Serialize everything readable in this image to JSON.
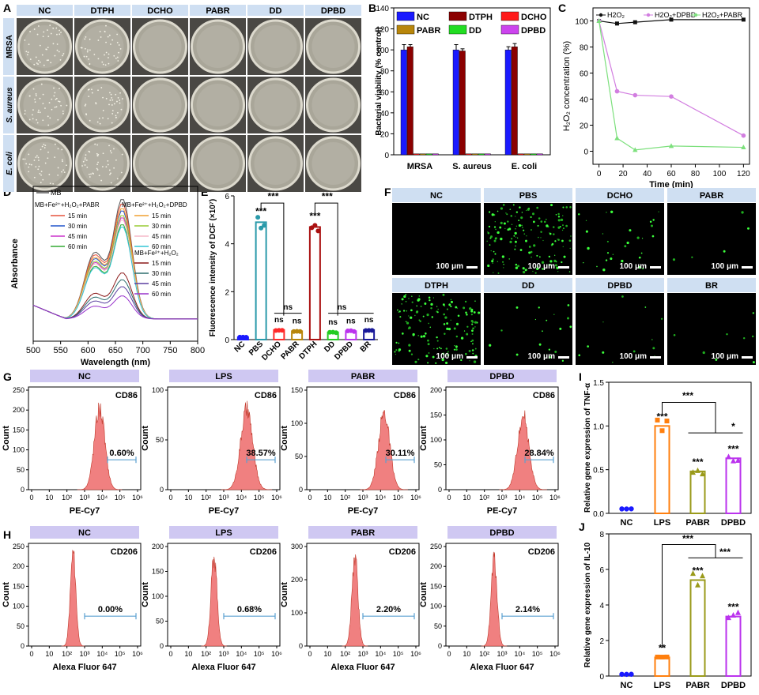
{
  "panels": {
    "A": {
      "label": "A",
      "columns": [
        "NC",
        "DTPH",
        "DCHO",
        "PABR",
        "DD",
        "DPBD"
      ],
      "rows": [
        "MRSA",
        "S. aureus",
        "E. coli"
      ],
      "colonies": [
        [
          1,
          1,
          0,
          0,
          0,
          0
        ],
        [
          1,
          1,
          0,
          0,
          0,
          0
        ],
        [
          1,
          1,
          0,
          0,
          0,
          0
        ]
      ]
    },
    "B": {
      "label": "B",
      "chart_data": {
        "type": "bar",
        "ylabel": "Bacterial viability (% control)",
        "categories": [
          "MRSA",
          "S. aureus",
          "E. coli"
        ],
        "ylim": [
          0,
          140
        ],
        "yticks": [
          0,
          20,
          40,
          60,
          80,
          100,
          120,
          140
        ],
        "series": [
          {
            "name": "NC",
            "color": "#1a1aff",
            "values": [
              100,
              100,
              100
            ],
            "err": [
              5,
              5,
              3
            ]
          },
          {
            "name": "DTPH",
            "color": "#8b0000",
            "values": [
              103,
              99,
              103
            ],
            "err": [
              2,
              2,
              3
            ]
          },
          {
            "name": "DCHO",
            "color": "#ff1a1a",
            "values": [
              1,
              1,
              1
            ],
            "err": [
              0,
              0,
              0
            ]
          },
          {
            "name": "PABR",
            "color": "#b8860b",
            "values": [
              1,
              1,
              1
            ],
            "err": [
              0,
              0,
              0
            ]
          },
          {
            "name": "DD",
            "color": "#22dd22",
            "values": [
              1,
              1,
              1
            ],
            "err": [
              0,
              0,
              0
            ]
          },
          {
            "name": "DPBD",
            "color": "#cc44ee",
            "values": [
              1,
              1,
              1
            ],
            "err": [
              0,
              0,
              0
            ]
          }
        ]
      }
    },
    "C": {
      "label": "C",
      "chart_data": {
        "type": "line",
        "xlabel": "Time (min)",
        "ylabel": "H2O2 concentration (%)",
        "xlim": [
          -5,
          125
        ],
        "ylim": [
          -10,
          110
        ],
        "xticks": [
          0,
          20,
          40,
          60,
          80,
          100,
          120
        ],
        "yticks": [
          0,
          20,
          40,
          60,
          80,
          100
        ],
        "series": [
          {
            "name": "H2O2",
            "color": "#111111",
            "marker": "square",
            "x": [
              0,
              15,
              30,
              60,
              120
            ],
            "y": [
              100,
              98,
              99,
              101,
              101
            ]
          },
          {
            "name": "H2O2+DPBD",
            "color": "#d27ee0",
            "marker": "circle",
            "x": [
              0,
              15,
              30,
              60,
              120
            ],
            "y": [
              100,
              46,
              43,
              42,
              12
            ]
          },
          {
            "name": "H2O2+PABR",
            "color": "#7de07d",
            "marker": "triangle",
            "x": [
              0,
              15,
              30,
              60,
              120
            ],
            "y": [
              100,
              10,
              1,
              4,
              3
            ]
          }
        ]
      }
    },
    "D": {
      "label": "D",
      "chart_data": {
        "type": "line",
        "xlabel": "Wavelength (nm)",
        "ylabel": "Absorbance",
        "xlim": [
          500,
          800
        ],
        "xticks": [
          500,
          550,
          600,
          650,
          700,
          750,
          800
        ],
        "peak_nm": 663,
        "shoulder_nm": 612,
        "legend_groups": [
          {
            "title": "MB",
            "items": [
              {
                "name": "MB",
                "color": "#555555",
                "peak": 0.52
              }
            ]
          },
          {
            "title": "MB+Fe2++H2O2+PABR",
            "items": [
              {
                "name": "15 min",
                "color": "#e5533d",
                "peak": 0.5
              },
              {
                "name": "30 min",
                "color": "#2255cc",
                "peak": 0.47
              },
              {
                "name": "45 min",
                "color": "#cc33cc",
                "peak": 0.44
              },
              {
                "name": "60 min",
                "color": "#33aa33",
                "peak": 0.41
              }
            ]
          },
          {
            "title": "MB+Fe2++H2O2+DPBD",
            "items": [
              {
                "name": "15 min",
                "color": "#f0a030",
                "peak": 0.48
              },
              {
                "name": "30 min",
                "color": "#99cc33",
                "peak": 0.45
              },
              {
                "name": "45 min",
                "color": "#f5b8c8",
                "peak": 0.43
              },
              {
                "name": "60 min",
                "color": "#33c6d6",
                "peak": 0.4
              }
            ]
          },
          {
            "title": "MB+Fe2++H2O2",
            "items": [
              {
                "name": "15 min",
                "color": "#8b1a1a",
                "peak": 0.2
              },
              {
                "name": "30 min",
                "color": "#2f6f6f",
                "peak": 0.17
              },
              {
                "name": "45 min",
                "color": "#5b3fa0",
                "peak": 0.14
              },
              {
                "name": "60 min",
                "color": "#9933cc",
                "peak": 0.1
              }
            ]
          }
        ]
      }
    },
    "E": {
      "label": "E",
      "chart_data": {
        "type": "bar",
        "ylabel": "Fluorescence intensity of DCF (×10^7)",
        "categories": [
          "NC",
          "PBS",
          "DCHO",
          "PABR",
          "DTPH",
          "DD",
          "DPBD",
          "BR"
        ],
        "ylim": [
          0,
          6
        ],
        "yticks": [
          0,
          2,
          4,
          6
        ],
        "values": [
          0.1,
          4.9,
          0.4,
          0.35,
          4.7,
          0.3,
          0.35,
          0.4
        ],
        "colors": [
          "#1a1aff",
          "#2a9aaa",
          "#ff2a2a",
          "#b8860b",
          "#aa1111",
          "#22cc22",
          "#bb33ee",
          "#1a1a99"
        ],
        "significance": [
          "",
          "***",
          "ns",
          "ns",
          "***",
          "ns",
          "ns",
          "ns"
        ],
        "brackets": [
          "***",
          "ns",
          "***",
          "ns"
        ]
      }
    },
    "F": {
      "label": "F",
      "scale_bar": "100 μm",
      "tiles": [
        {
          "name": "NC",
          "density": 0
        },
        {
          "name": "PBS",
          "density": 160
        },
        {
          "name": "DCHO",
          "density": 30
        },
        {
          "name": "PABR",
          "density": 5
        },
        {
          "name": "DTPH",
          "density": 150
        },
        {
          "name": "DD",
          "density": 18
        },
        {
          "name": "DPBD",
          "density": 12
        },
        {
          "name": "BR",
          "density": 8
        }
      ]
    },
    "G": {
      "label": "G",
      "marker": "CD86",
      "xlabel": "PE-Cy7",
      "ylabel": "Count",
      "xtick_labels": [
        "0",
        "10",
        "10²",
        "10³",
        "10⁴",
        "10⁵",
        "10⁶"
      ],
      "chart_data": [
        {
          "title": "NC",
          "percent": "0.60%",
          "ymax": 250,
          "yticks": [
            0,
            50,
            100,
            150,
            200,
            250
          ],
          "peak_log": 3.85,
          "peak_count": 205,
          "width": 0.42
        },
        {
          "title": "LPS",
          "percent": "38.57%",
          "ymax": 100,
          "yticks": [
            0,
            50,
            100
          ],
          "peak_log": 4.3,
          "peak_count": 80,
          "width": 0.48
        },
        {
          "title": "PABR",
          "percent": "30.11%",
          "ymax": 150,
          "yticks": [
            0,
            50,
            100,
            150
          ],
          "peak_log": 4.2,
          "peak_count": 115,
          "width": 0.45
        },
        {
          "title": "DPBD",
          "percent": "28.84%",
          "ymax": 200,
          "yticks": [
            0,
            50,
            100,
            150,
            200
          ],
          "peak_log": 4.2,
          "peak_count": 150,
          "width": 0.45
        }
      ]
    },
    "H": {
      "label": "H",
      "marker": "CD206",
      "xlabel": "Alexa Fluor 647",
      "ylabel": "Count",
      "xtick_labels": [
        "0",
        "10",
        "10²",
        "10³",
        "10⁴",
        "10⁵",
        "10⁶"
      ],
      "chart_data": [
        {
          "title": "NC",
          "percent": "0.00%",
          "ymax": 250,
          "yticks": [
            0,
            50,
            100,
            150,
            200,
            250
          ],
          "peak_log": 2.35,
          "peak_count": 235,
          "width": 0.22
        },
        {
          "title": "LPS",
          "percent": "0.68%",
          "ymax": 200,
          "yticks": [
            0,
            50,
            100,
            150,
            200
          ],
          "peak_log": 2.45,
          "peak_count": 180,
          "width": 0.24
        },
        {
          "title": "PABR",
          "percent": "2.20%",
          "ymax": 300,
          "yticks": [
            0,
            100,
            200,
            300
          ],
          "peak_log": 2.55,
          "peak_count": 270,
          "width": 0.24
        },
        {
          "title": "DPBD",
          "percent": "2.14%",
          "ymax": 250,
          "yticks": [
            0,
            50,
            100,
            150,
            200,
            250
          ],
          "peak_log": 2.55,
          "peak_count": 215,
          "width": 0.24
        }
      ]
    },
    "I": {
      "label": "I",
      "chart_data": {
        "type": "bar",
        "ylabel": "Relative gene expression of TNF-α",
        "categories": [
          "NC",
          "LPS",
          "PABR",
          "DPBD"
        ],
        "ylim": [
          0,
          1.5
        ],
        "yticks": [
          0.0,
          0.5,
          1.0,
          1.5
        ],
        "ytick_labels": [
          "0.0",
          "0.5",
          "1.0",
          "1.5"
        ],
        "values": [
          0.05,
          1.0,
          0.48,
          0.63
        ],
        "colors": [
          "#1a1aff",
          "#ff7f0e",
          "#9a9a1a",
          "#bb33ee"
        ],
        "significance": [
          "",
          "***",
          "***",
          "***"
        ],
        "brackets": [
          "***",
          "*"
        ]
      }
    },
    "J": {
      "label": "J",
      "chart_data": {
        "type": "bar",
        "ylabel": "Relative gene expression of IL-10",
        "categories": [
          "NC",
          "LPS",
          "PABR",
          "DPBD"
        ],
        "ylim": [
          0,
          8
        ],
        "yticks": [
          0,
          2,
          4,
          6,
          8
        ],
        "ytick_labels": [
          "0",
          "2",
          "4",
          "6",
          "8"
        ],
        "values": [
          0.1,
          1.05,
          5.4,
          3.35
        ],
        "colors": [
          "#1a1aff",
          "#ff7f0e",
          "#9a9a1a",
          "#bb33ee"
        ],
        "significance": [
          "",
          "**",
          "***",
          "***"
        ],
        "brackets": [
          "***",
          "***"
        ]
      }
    }
  }
}
